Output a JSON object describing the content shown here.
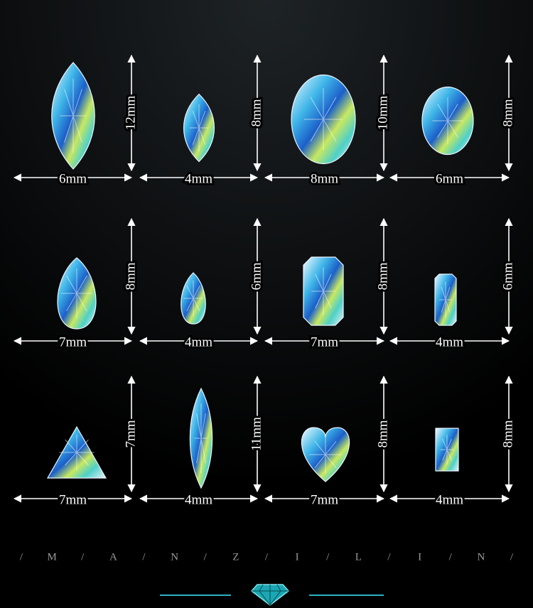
{
  "items": [
    {
      "width": "6mm",
      "height": "12mm"
    },
    {
      "width": "4mm",
      "height": "8mm"
    },
    {
      "width": "8mm",
      "height": "10mm"
    },
    {
      "width": "6mm",
      "height": "8mm"
    },
    {
      "width": "7mm",
      "height": "8mm"
    },
    {
      "width": "4mm",
      "height": "6mm"
    },
    {
      "width": "7mm",
      "height": "8mm"
    },
    {
      "width": "4mm",
      "height": "6mm"
    },
    {
      "width": "7mm",
      "height": "7mm"
    },
    {
      "width": "4mm",
      "height": "11mm"
    },
    {
      "width": "7mm",
      "height": "8mm"
    },
    {
      "width": "4mm",
      "height": "8mm"
    }
  ],
  "brand": [
    "/",
    "M",
    "/",
    "A",
    "/",
    "N",
    "/",
    "Z",
    "/",
    "I",
    "/",
    "L",
    "/",
    "I",
    "/",
    "N",
    "/"
  ]
}
